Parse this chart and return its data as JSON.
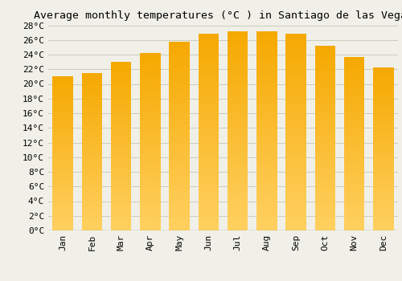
{
  "title": "Average monthly temperatures (°C ) in Santiago de las Vegas",
  "months": [
    "Jan",
    "Feb",
    "Mar",
    "Apr",
    "May",
    "Jun",
    "Jul",
    "Aug",
    "Sep",
    "Oct",
    "Nov",
    "Dec"
  ],
  "temperatures": [
    21.0,
    21.5,
    23.0,
    24.2,
    25.7,
    26.8,
    27.2,
    27.2,
    26.8,
    25.2,
    23.7,
    22.2
  ],
  "bar_color_top": "#F5A800",
  "bar_color_bottom": "#FFD060",
  "ylim": [
    0,
    28
  ],
  "ytick_step": 2,
  "background_color": "#f0f0e8",
  "grid_color": "#ccccbb",
  "title_fontsize": 9.5,
  "tick_fontsize": 8,
  "font_family": "monospace",
  "bar_width": 0.7,
  "n_gradient_steps": 100
}
